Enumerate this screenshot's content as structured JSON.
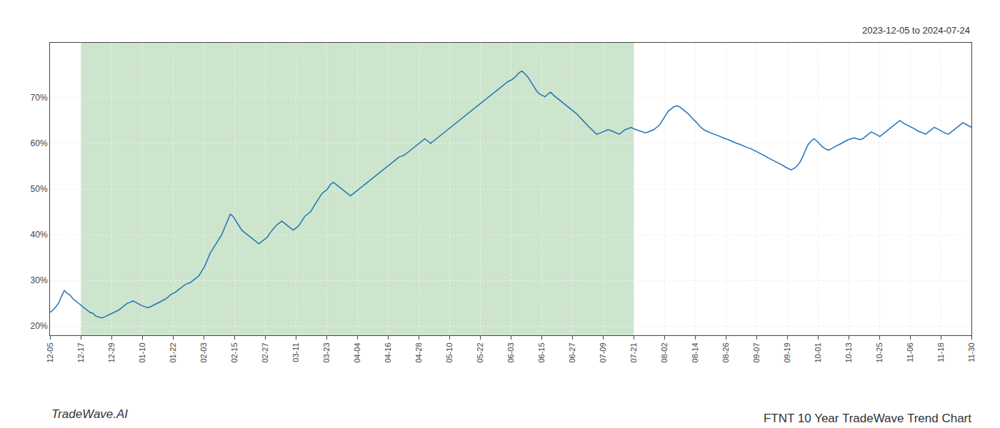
{
  "chart_data": {
    "type": "line",
    "title": "FTNT 10 Year TradeWave Trend Chart",
    "subtitle": "2023-12-05 to 2024-07-24",
    "annotations": [
      "TradeWave.AI"
    ],
    "color": "#2272b8",
    "grid": true,
    "highlight": {
      "start": 10.733333333333333,
      "end": 203.93333333333334,
      "color": "#cce5cc"
    },
    "xlim": [
      0,
      322
    ],
    "xticks": [
      {
        "value": 0,
        "label": "12-05"
      },
      {
        "value": 10.733333333333333,
        "label": "12-17"
      },
      {
        "value": 21.466666666666665,
        "label": "12-29"
      },
      {
        "value": 32.2,
        "label": "01-10"
      },
      {
        "value": 42.93333333333333,
        "label": "01-22"
      },
      {
        "value": 53.666666666666664,
        "label": "02-03"
      },
      {
        "value": 64.4,
        "label": "02-15"
      },
      {
        "value": 75.13333333333333,
        "label": "02-27"
      },
      {
        "value": 85.86666666666666,
        "label": "03-11"
      },
      {
        "value": 96.6,
        "label": "03-23"
      },
      {
        "value": 107.33333333333333,
        "label": "04-04"
      },
      {
        "value": 118.06666666666666,
        "label": "04-16"
      },
      {
        "value": 128.8,
        "label": "04-28"
      },
      {
        "value": 139.53333333333333,
        "label": "05-10"
      },
      {
        "value": 150.26666666666665,
        "label": "05-22"
      },
      {
        "value": 161,
        "label": "06-03"
      },
      {
        "value": 171.73333333333332,
        "label": "06-15"
      },
      {
        "value": 182.46666666666667,
        "label": "06-27"
      },
      {
        "value": 193.2,
        "label": "07-09"
      },
      {
        "value": 203.93333333333334,
        "label": "07-21"
      },
      {
        "value": 214.66666666666666,
        "label": "08-02"
      },
      {
        "value": 225.4,
        "label": "08-14"
      },
      {
        "value": 236.13333333333333,
        "label": "08-26"
      },
      {
        "value": 246.86666666666667,
        "label": "09-07"
      },
      {
        "value": 257.6,
        "label": "09-19"
      },
      {
        "value": 268.3333333333333,
        "label": "10-01"
      },
      {
        "value": 279.06666666666666,
        "label": "10-13"
      },
      {
        "value": 289.8,
        "label": "10-25"
      },
      {
        "value": 300.53333333333336,
        "label": "11-06"
      },
      {
        "value": 311.26666666666665,
        "label": "11-18"
      },
      {
        "value": 322,
        "label": "11-30"
      }
    ],
    "ylim": [
      18,
      82
    ],
    "yticks": [
      {
        "value": 20,
        "label": "20%"
      },
      {
        "value": 30,
        "label": "30%"
      },
      {
        "value": 40,
        "label": "40%"
      },
      {
        "value": 50,
        "label": "50%"
      },
      {
        "value": 60,
        "label": "60%"
      },
      {
        "value": 70,
        "label": "70%"
      }
    ],
    "values": [
      23.0,
      23.5,
      24.2,
      25.0,
      26.5,
      27.8,
      27.2,
      26.8,
      26.0,
      25.5,
      25.0,
      24.5,
      24.0,
      23.5,
      23.0,
      22.8,
      22.2,
      22.0,
      21.8,
      22.0,
      22.3,
      22.5,
      22.8,
      23.2,
      23.5,
      24.0,
      24.5,
      25.0,
      25.2,
      25.5,
      25.2,
      24.8,
      24.5,
      24.3,
      24.0,
      24.2,
      24.5,
      24.8,
      25.2,
      25.5,
      25.8,
      26.2,
      26.8,
      27.2,
      27.5,
      28.0,
      28.5,
      29.0,
      29.3,
      29.5,
      30.0,
      30.5,
      31.0,
      32.0,
      33.0,
      34.5,
      36.0,
      37.0,
      38.0,
      39.0,
      40.0,
      41.5,
      43.0,
      44.5,
      44.0,
      43.0,
      42.0,
      41.0,
      40.5,
      40.0,
      39.5,
      39.0,
      38.5,
      38.0,
      38.5,
      39.0,
      39.5,
      40.5,
      41.2,
      42.0,
      42.5,
      43.0,
      42.5,
      42.0,
      41.5,
      41.0,
      41.5,
      42.0,
      43.0,
      44.0,
      44.5,
      45.0,
      46.0,
      47.0,
      48.0,
      49.0,
      49.5,
      50.0,
      51.0,
      51.5,
      51.0,
      50.5,
      50.0,
      49.5,
      49.0,
      48.5,
      49.0,
      49.5,
      50.0,
      50.5,
      51.0,
      51.5,
      52.0,
      52.5,
      53.0,
      53.5,
      54.0,
      54.5,
      55.0,
      55.5,
      56.0,
      56.5,
      57.0,
      57.2,
      57.5,
      58.0,
      58.5,
      59.0,
      59.5,
      60.0,
      60.5,
      61.0,
      60.5,
      60.0,
      60.5,
      61.0,
      61.5,
      62.0,
      62.5,
      63.0,
      63.5,
      64.0,
      64.5,
      65.0,
      65.5,
      66.0,
      66.5,
      67.0,
      67.5,
      68.0,
      68.5,
      69.0,
      69.5,
      70.0,
      70.5,
      71.0,
      71.5,
      72.0,
      72.5,
      73.0,
      73.5,
      73.8,
      74.2,
      74.8,
      75.5,
      75.8,
      75.2,
      74.5,
      73.5,
      72.5,
      71.5,
      70.8,
      70.5,
      70.2,
      70.8,
      71.2,
      70.5,
      70.0,
      69.5,
      69.0,
      68.5,
      68.0,
      67.5,
      67.0,
      66.5,
      65.8,
      65.2,
      64.5,
      63.8,
      63.2,
      62.5,
      62.0,
      62.2,
      62.5,
      62.8,
      63.0,
      62.8,
      62.5,
      62.3,
      62.0,
      62.5,
      63.0,
      63.2,
      63.5,
      63.2,
      63.0,
      62.8,
      62.5,
      62.3,
      62.5,
      62.8,
      63.0,
      63.5,
      64.0,
      65.0,
      66.0,
      67.0,
      67.5,
      68.0,
      68.2,
      68.0,
      67.5,
      67.0,
      66.5,
      65.8,
      65.2,
      64.5,
      63.8,
      63.2,
      62.8,
      62.5,
      62.2,
      62.0,
      61.8,
      61.5,
      61.2,
      61.0,
      60.8,
      60.5,
      60.2,
      60.0,
      59.8,
      59.5,
      59.2,
      59.0,
      58.8,
      58.5,
      58.2,
      57.8,
      57.5,
      57.2,
      56.8,
      56.5,
      56.2,
      55.8,
      55.5,
      55.2,
      54.8,
      54.5,
      54.2,
      54.5,
      55.0,
      55.8,
      57.0,
      58.5,
      59.8,
      60.5,
      61.0,
      60.5,
      59.8,
      59.2,
      58.8,
      58.5,
      58.8,
      59.2,
      59.5,
      59.8,
      60.2,
      60.5,
      60.8,
      61.0,
      61.2,
      61.0,
      60.8,
      61.0,
      61.5,
      62.0,
      62.5,
      62.2,
      61.8,
      61.5,
      62.0,
      62.5,
      63.0,
      63.5,
      64.0,
      64.5,
      65.0,
      64.5,
      64.2,
      63.8,
      63.5,
      63.2,
      62.8,
      62.5,
      62.2,
      62.0,
      62.5,
      63.0,
      63.5,
      63.2,
      62.8,
      62.5,
      62.2,
      62.0,
      62.5,
      63.0,
      63.5,
      64.0,
      64.5,
      64.2,
      63.8,
      63.5
    ]
  }
}
